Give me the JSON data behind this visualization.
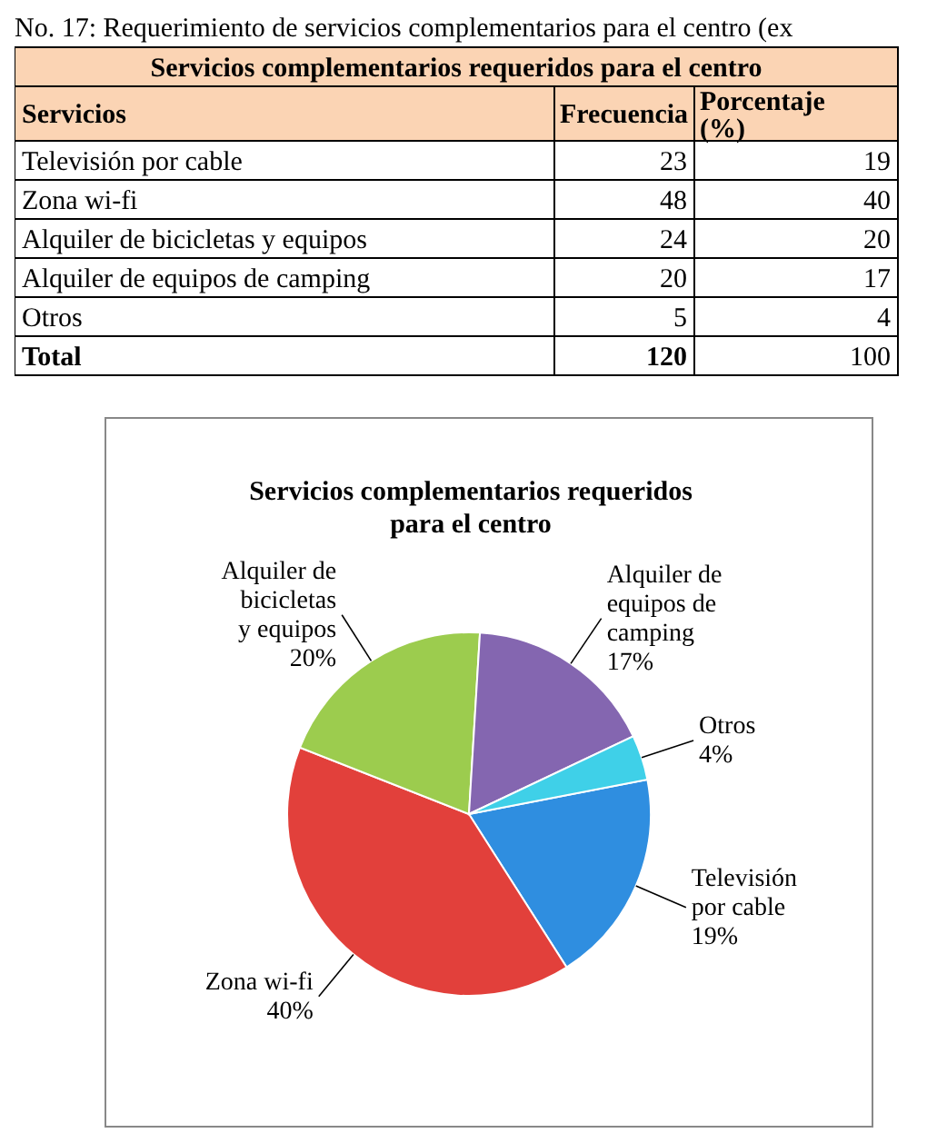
{
  "chart_data": [
    {
      "type": "other",
      "title": "Servicios complementarios requeridos para el centro",
      "xlabel": "Servicios",
      "annotations": [
        "No. 17: Requerimiento de servicios complementarios para el centro (ex"
      ],
      "categories": [
        "Televisión por cable",
        "Zona wi-fi",
        "Alquiler de bicicletas y equipos",
        "Alquiler de equipos de camping",
        "Otros",
        "Total"
      ],
      "series": [
        {
          "name": "Frecuencia",
          "values": [
            23,
            48,
            24,
            20,
            5,
            120
          ]
        },
        {
          "name": "Porcentaje (%)",
          "values": [
            19,
            40,
            20,
            17,
            4,
            100
          ]
        }
      ],
      "data_labels": true
    },
    {
      "type": "pie",
      "title": "Servicios complementarios requeridos para el centro",
      "categories": [
        "Televisión por cable",
        "Zona wi-fi",
        "Alquiler de bicicletas y equipos",
        "Alquiler de equipos de camping",
        "Otros"
      ],
      "values": [
        19,
        40,
        20,
        17,
        4
      ],
      "colors": [
        "#2f8ee0",
        "#e2403b",
        "#9ccc4e",
        "#8466b0",
        "#3fd0e8"
      ],
      "value_labels": [
        "19%",
        "40%",
        "20%",
        "17%",
        "4%"
      ]
    }
  ]
}
